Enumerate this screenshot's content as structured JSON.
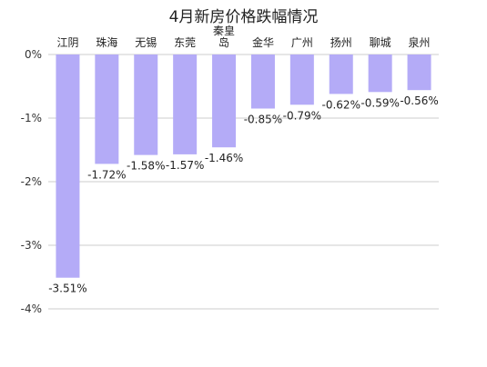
{
  "chart_data": {
    "type": "bar",
    "title": "4月新房价格跌幅情况",
    "categories": [
      "江阴",
      "珠海",
      "无锡",
      "东莞",
      "秦皇岛",
      "金华",
      "广州",
      "扬州",
      "聊城",
      "泉州"
    ],
    "values": [
      -3.51,
      -1.72,
      -1.58,
      -1.57,
      -1.46,
      -0.85,
      -0.79,
      -0.62,
      -0.59,
      -0.56
    ],
    "value_labels": [
      "-3.51%",
      "-1.72%",
      "-1.58%",
      "-1.57%",
      "-1.46%",
      "-0.85%",
      "-0.79%",
      "-0.62%",
      "-0.59%",
      "-0.56%"
    ],
    "y_ticks": [
      0,
      -1,
      -2,
      -3,
      -4
    ],
    "y_tick_labels": [
      "0%",
      "-1%",
      "-2%",
      "-3%",
      "-4%"
    ],
    "ylim": [
      -4,
      0
    ],
    "xlabel": "",
    "ylabel": "",
    "grid": true,
    "x_axis_position": "top",
    "bar_color": "#b4abf7",
    "grid_color": "#cccccc",
    "legend": "none"
  }
}
